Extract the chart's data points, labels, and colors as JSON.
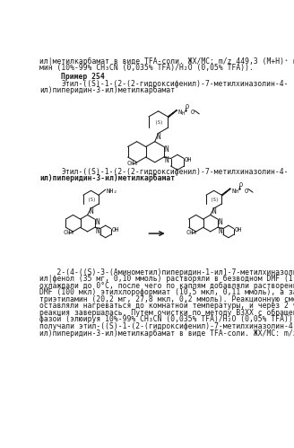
{
  "bg_color": "#ffffff",
  "text_color": "#1a1a1a",
  "line_color": "#1a1a1a",
  "fs": 5.8,
  "fs_bold": 6.0,
  "lines_top": [
    "ил|метилкарбамат в виде TFA-соли. ЖХ/МС: m/z 449,3 (M+H)⁺ на 2,78",
    "мин (10%-99% CH₃CN (0,035% TFA)/H₂O (0,05% TFA))."
  ],
  "example_label": "Пример 254",
  "cname1a": "Этил-((S)-1-(2-(2-гидроксифенил)-7-метилхиназолин-4-",
  "cname1b": "ил)пиперидин-3-ил)метилкарбамат",
  "cname2a": "Этил-((S)-1-(2-(2-гидроксифенил)-7-метилхиназолин-4-",
  "cname2b": "ил)пиперидин-3-ил)метилкарбамат",
  "body_lines": [
    "    2-(4-((S)-3-(Аминометил)пиперидин-1-ил]-7-метилхиназолин-2-",
    "ил|фенол (35 мг, 0,10 ммоль) растворяли в безводном DMF (1 мл) и",
    "охлаждали до 0°C, после чего по каплям добавляли растворенный в",
    "DMF (100 мкл) этилхлороформиат (10,5 мкл, 0,11 ммоль), а затем",
    "триэтиламин (20,2 мг, 27,8 мкл, 0,2 ммоль). Реакционную смесь",
    "оставляли нагреваться до комнатной температуры, и через 2 ч",
    "реакция завершалась. Путем очистки по методу ВЗХХ с обращенной",
    "фазой (элюируя 10%-99% CH₃CN (0,035% TFA)/H₂O (0,05% TFA))",
    "получали этил-((S)-1-(2-(гидроксифенил)-7-метилхиназолин-4-",
    "ил)пиперидин-3-ил)метилкарбамат в виде TFA-соли. ЖХ/МС: m/z"
  ]
}
